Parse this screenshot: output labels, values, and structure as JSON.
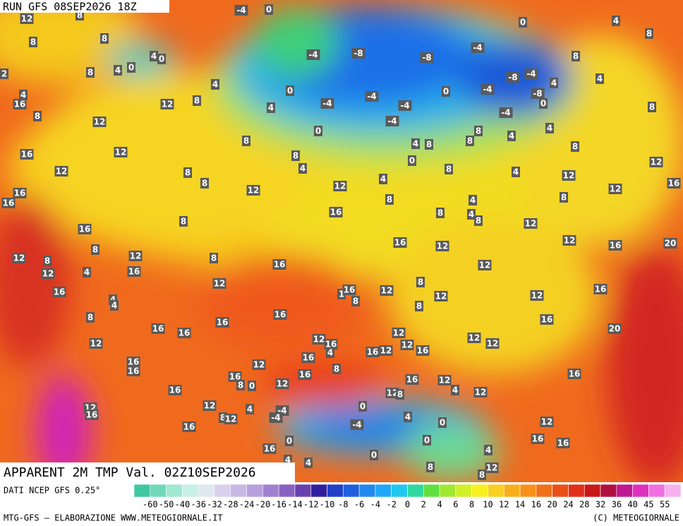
{
  "header": {
    "run": "RUN GFS 08SEP2026 18Z",
    "title": "APPARENT 2M TMP Val. 02Z10SEP2026"
  },
  "map_labels": [
    -4,
    0,
    0,
    4,
    12,
    8,
    8,
    8,
    8,
    4,
    0,
    0,
    4,
    8,
    -4,
    -8,
    -8,
    -4,
    8,
    4,
    -8,
    -4,
    4,
    -4,
    -8,
    0,
    -4,
    0,
    -4,
    -4,
    -4,
    -4,
    0,
    4,
    0,
    4,
    8,
    12,
    12,
    8,
    16,
    4,
    2,
    8,
    4,
    8,
    12,
    8,
    8,
    4,
    4,
    8,
    0,
    8,
    4,
    12,
    12,
    16,
    8,
    4,
    8,
    12,
    12,
    8,
    8,
    8,
    8,
    4,
    12,
    16,
    12,
    16,
    16,
    8,
    16,
    8,
    4,
    4,
    8,
    12,
    16,
    8,
    12,
    8,
    12,
    4,
    12,
    16,
    8,
    16,
    16,
    12,
    12,
    16,
    20,
    12,
    8,
    16,
    4,
    4,
    8,
    12,
    1,
    16,
    8,
    12,
    12,
    12,
    16,
    8,
    16,
    16,
    16,
    16,
    16,
    12,
    12,
    16,
    4,
    16,
    12,
    12,
    12,
    16,
    12,
    12,
    20,
    16,
    12,
    16,
    16,
    16,
    8,
    16,
    8,
    0,
    12,
    16,
    12,
    16,
    12,
    8,
    4,
    12,
    16,
    12,
    12,
    16,
    0,
    8,
    12,
    4,
    -4,
    -4,
    4,
    0,
    -4,
    12,
    16,
    0,
    0,
    16,
    16,
    16,
    4,
    0,
    4,
    4,
    8,
    12,
    8
  ],
  "legend": {
    "source": "DATI NCEP GFS 0.25°",
    "labels": [
      -60,
      -50,
      -40,
      -36,
      -32,
      -28,
      -24,
      -20,
      -16,
      -14,
      -12,
      -10,
      -8,
      -6,
      -4,
      -2,
      0,
      2,
      4,
      6,
      8,
      10,
      12,
      14,
      16,
      20,
      24,
      28,
      32,
      36,
      40,
      45,
      55
    ]
  },
  "footer": {
    "left": "MTG-GFS — ELABORAZIONE WWW.METEOGIORNALE.IT",
    "right": "(C) METEOGIORNALE"
  }
}
